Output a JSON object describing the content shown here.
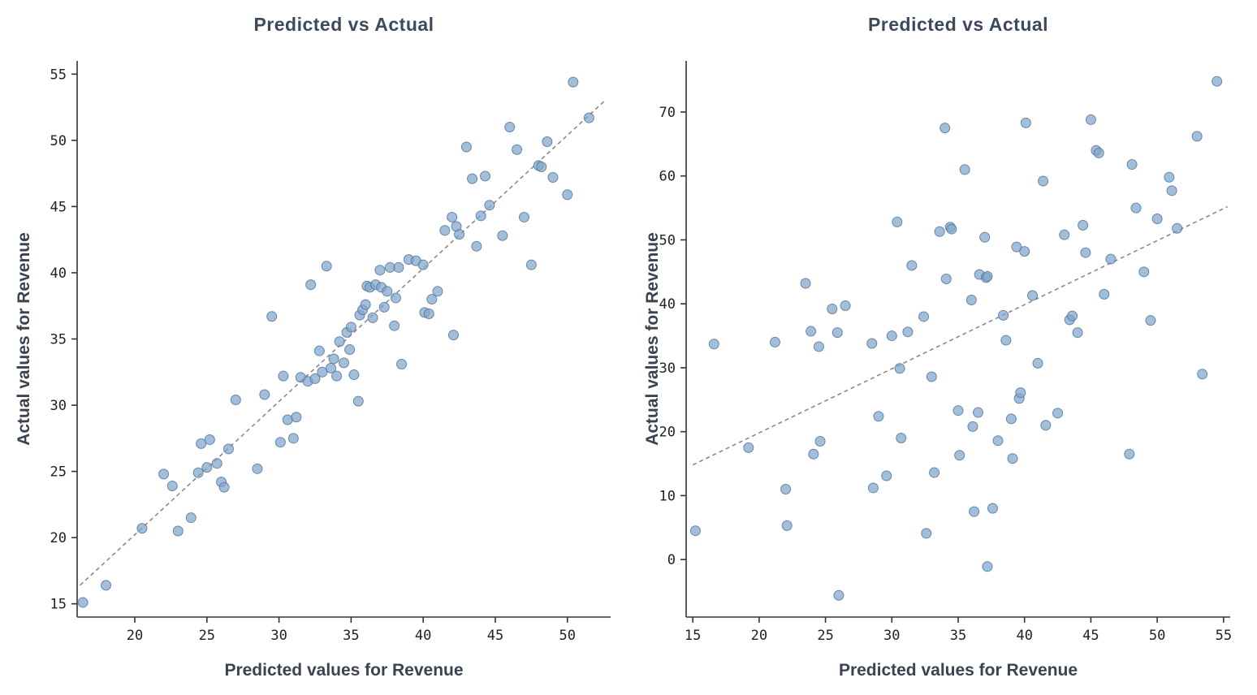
{
  "figure": {
    "background": "#ffffff",
    "style": {
      "point_fill": "#7fa5cb",
      "point_edge": "#55779c",
      "point_opacity": 0.72,
      "axis_color": "#333333",
      "tick_color": "#222222",
      "ref_line_color": "#8a8a8a",
      "title_color": "#3d4a5c"
    }
  },
  "chart_data": "see charts array",
  "charts": [
    {
      "type": "scatter",
      "title": "Predicted vs Actual",
      "xlabel": "Predicted values for Revenue",
      "ylabel": "Actual values for Revenue",
      "xlim": [
        16,
        53
      ],
      "ylim": [
        14,
        56
      ],
      "xticks": [
        20,
        25,
        30,
        35,
        40,
        45,
        50
      ],
      "yticks": [
        15,
        20,
        25,
        30,
        35,
        40,
        45,
        50,
        55
      ],
      "grid": false,
      "legend": "none",
      "ref_line": [
        [
          16.2,
          16.4
        ],
        [
          52.6,
          53.0
        ]
      ],
      "points": [
        [
          16.4,
          15.1
        ],
        [
          18.0,
          16.4
        ],
        [
          20.5,
          20.7
        ],
        [
          22.0,
          24.8
        ],
        [
          22.6,
          23.9
        ],
        [
          23.0,
          20.5
        ],
        [
          23.9,
          21.5
        ],
        [
          24.4,
          24.9
        ],
        [
          24.6,
          27.1
        ],
        [
          25.0,
          25.3
        ],
        [
          25.2,
          27.4
        ],
        [
          25.7,
          25.6
        ],
        [
          26.0,
          24.2
        ],
        [
          26.2,
          23.8
        ],
        [
          26.5,
          26.7
        ],
        [
          27.0,
          30.4
        ],
        [
          28.5,
          25.2
        ],
        [
          29.0,
          30.8
        ],
        [
          29.5,
          36.7
        ],
        [
          30.1,
          27.2
        ],
        [
          30.3,
          32.2
        ],
        [
          30.6,
          28.9
        ],
        [
          31.0,
          27.5
        ],
        [
          31.2,
          29.1
        ],
        [
          31.5,
          32.1
        ],
        [
          32.0,
          31.8
        ],
        [
          32.2,
          39.1
        ],
        [
          32.5,
          32.0
        ],
        [
          32.8,
          34.1
        ],
        [
          33.0,
          32.5
        ],
        [
          33.3,
          40.5
        ],
        [
          33.6,
          32.8
        ],
        [
          33.8,
          33.5
        ],
        [
          34.0,
          32.2
        ],
        [
          34.2,
          34.8
        ],
        [
          34.5,
          33.2
        ],
        [
          34.7,
          35.5
        ],
        [
          34.9,
          34.2
        ],
        [
          35.0,
          35.9
        ],
        [
          35.2,
          32.3
        ],
        [
          35.5,
          30.3
        ],
        [
          35.6,
          36.8
        ],
        [
          35.8,
          37.2
        ],
        [
          36.0,
          37.6
        ],
        [
          36.1,
          39.0
        ],
        [
          36.3,
          38.9
        ],
        [
          36.5,
          36.6
        ],
        [
          36.7,
          39.1
        ],
        [
          37.0,
          40.2
        ],
        [
          37.1,
          38.9
        ],
        [
          37.3,
          37.4
        ],
        [
          37.5,
          38.6
        ],
        [
          37.7,
          40.4
        ],
        [
          38.0,
          36.0
        ],
        [
          38.1,
          38.1
        ],
        [
          38.3,
          40.4
        ],
        [
          38.5,
          33.1
        ],
        [
          39.0,
          41.0
        ],
        [
          39.5,
          40.9
        ],
        [
          40.0,
          40.6
        ],
        [
          40.1,
          37.0
        ],
        [
          40.4,
          36.9
        ],
        [
          40.6,
          38.0
        ],
        [
          41.0,
          38.6
        ],
        [
          41.5,
          43.2
        ],
        [
          42.0,
          44.2
        ],
        [
          42.1,
          35.3
        ],
        [
          42.3,
          43.5
        ],
        [
          42.5,
          42.9
        ],
        [
          43.0,
          49.5
        ],
        [
          43.4,
          47.1
        ],
        [
          43.7,
          42.0
        ],
        [
          44.0,
          44.3
        ],
        [
          44.3,
          47.3
        ],
        [
          44.6,
          45.1
        ],
        [
          45.5,
          42.8
        ],
        [
          46.0,
          51.0
        ],
        [
          46.5,
          49.3
        ],
        [
          47.0,
          44.2
        ],
        [
          47.5,
          40.6
        ],
        [
          48.0,
          48.1
        ],
        [
          48.2,
          48.0
        ],
        [
          48.6,
          49.9
        ],
        [
          49.0,
          47.2
        ],
        [
          50.0,
          45.9
        ],
        [
          50.4,
          54.4
        ],
        [
          51.5,
          51.7
        ]
      ]
    },
    {
      "type": "scatter",
      "title": "Predicted vs Actual",
      "xlabel": "Predicted values for Revenue",
      "ylabel": "Actual values for Revenue",
      "xlim": [
        14.5,
        55.5
      ],
      "ylim": [
        -9,
        78
      ],
      "xticks": [
        15,
        20,
        25,
        30,
        35,
        40,
        45,
        50,
        55
      ],
      "yticks": [
        0,
        10,
        20,
        30,
        40,
        50,
        60,
        70
      ],
      "grid": false,
      "legend": "none",
      "ref_line": [
        [
          15.0,
          14.8
        ],
        [
          55.3,
          55.2
        ]
      ],
      "points": [
        [
          15.2,
          4.5
        ],
        [
          16.6,
          33.7
        ],
        [
          19.2,
          17.5
        ],
        [
          21.2,
          34.0
        ],
        [
          22.0,
          11.0
        ],
        [
          22.1,
          5.3
        ],
        [
          23.5,
          43.2
        ],
        [
          23.9,
          35.7
        ],
        [
          24.1,
          16.5
        ],
        [
          24.5,
          33.3
        ],
        [
          24.6,
          18.5
        ],
        [
          25.5,
          39.2
        ],
        [
          25.9,
          35.5
        ],
        [
          26.0,
          -5.6
        ],
        [
          26.5,
          39.7
        ],
        [
          28.5,
          33.8
        ],
        [
          28.6,
          11.2
        ],
        [
          29.0,
          22.4
        ],
        [
          29.6,
          13.1
        ],
        [
          30.0,
          35.0
        ],
        [
          30.4,
          52.8
        ],
        [
          30.6,
          29.9
        ],
        [
          30.7,
          19.0
        ],
        [
          31.2,
          35.6
        ],
        [
          31.5,
          46.0
        ],
        [
          32.4,
          38.0
        ],
        [
          32.6,
          4.1
        ],
        [
          33.0,
          28.6
        ],
        [
          33.2,
          13.6
        ],
        [
          33.6,
          51.3
        ],
        [
          34.0,
          67.5
        ],
        [
          34.1,
          43.9
        ],
        [
          34.4,
          52.0
        ],
        [
          34.5,
          51.7
        ],
        [
          35.0,
          23.3
        ],
        [
          35.1,
          16.3
        ],
        [
          35.5,
          61.0
        ],
        [
          36.0,
          40.6
        ],
        [
          36.1,
          20.8
        ],
        [
          36.2,
          7.5
        ],
        [
          36.5,
          23.0
        ],
        [
          36.6,
          44.6
        ],
        [
          37.0,
          50.4
        ],
        [
          37.1,
          44.1
        ],
        [
          37.2,
          44.3
        ],
        [
          37.2,
          -1.1
        ],
        [
          37.6,
          8.0
        ],
        [
          38.0,
          18.6
        ],
        [
          38.4,
          38.2
        ],
        [
          38.6,
          34.3
        ],
        [
          39.0,
          22.0
        ],
        [
          39.1,
          15.8
        ],
        [
          39.4,
          48.9
        ],
        [
          39.6,
          25.2
        ],
        [
          39.7,
          26.1
        ],
        [
          40.0,
          48.2
        ],
        [
          40.1,
          68.3
        ],
        [
          40.6,
          41.3
        ],
        [
          41.0,
          30.7
        ],
        [
          41.4,
          59.2
        ],
        [
          41.6,
          21.0
        ],
        [
          42.5,
          22.9
        ],
        [
          43.0,
          50.8
        ],
        [
          43.4,
          37.5
        ],
        [
          43.6,
          38.1
        ],
        [
          44.0,
          35.5
        ],
        [
          44.4,
          52.3
        ],
        [
          44.6,
          48.0
        ],
        [
          45.0,
          68.8
        ],
        [
          45.4,
          64.0
        ],
        [
          45.6,
          63.6
        ],
        [
          46.0,
          41.5
        ],
        [
          46.5,
          47.0
        ],
        [
          47.9,
          16.5
        ],
        [
          48.1,
          61.8
        ],
        [
          48.4,
          55.0
        ],
        [
          49.0,
          45.0
        ],
        [
          49.5,
          37.4
        ],
        [
          50.0,
          53.3
        ],
        [
          50.9,
          59.8
        ],
        [
          51.1,
          57.7
        ],
        [
          51.5,
          51.8
        ],
        [
          53.0,
          66.2
        ],
        [
          53.4,
          29.0
        ],
        [
          54.5,
          74.8
        ]
      ]
    }
  ]
}
